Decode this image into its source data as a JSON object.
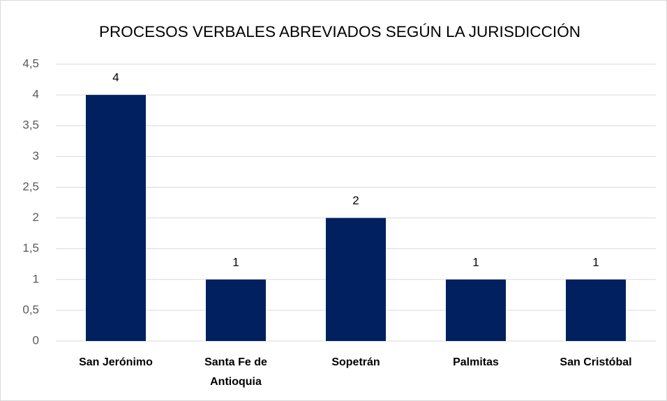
{
  "chart_data": {
    "type": "bar",
    "title": "PROCESOS VERBALES ABREVIADOS SEGÚN LA JURISDICCIÓN",
    "categories": [
      "San Jerónimo",
      "Santa Fe de Antioquia",
      "Sopetrán",
      "Palmitas",
      "San Cristóbal"
    ],
    "values": [
      4,
      1,
      2,
      1,
      1
    ],
    "color": "#002060",
    "ylim": [
      0,
      4.5
    ],
    "yticks": [
      0,
      {
        "value": 0.5,
        "label": "0,5"
      },
      1,
      {
        "value": 1.5,
        "label": "1,5"
      },
      2,
      {
        "value": 2.5,
        "label": "2,5"
      },
      3,
      {
        "value": 3.5,
        "label": "3,5"
      },
      4,
      {
        "value": 4.5,
        "label": "4,5"
      }
    ],
    "grid": true
  }
}
